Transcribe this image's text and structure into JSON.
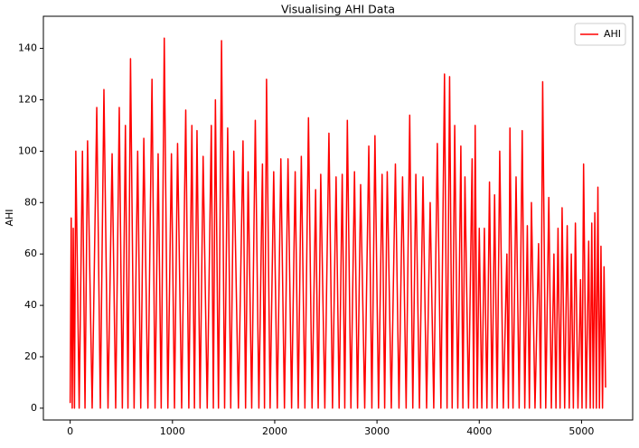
{
  "chart_data": {
    "type": "line",
    "title": "Visualising AHI Data",
    "y_label": "AHI",
    "xlim": [
      -262,
      5500
    ],
    "ylim": [
      -4.6,
      152.5
    ],
    "xticks": [
      0,
      1000,
      2000,
      3000,
      4000,
      5000
    ],
    "yticks": [
      0,
      20,
      40,
      60,
      80,
      100,
      120,
      140
    ],
    "grid": false,
    "legend": "upper right",
    "x": [
      0,
      10,
      20,
      30,
      42,
      55,
      88,
      120,
      145,
      170,
      215,
      260,
      295,
      330,
      370,
      410,
      445,
      480,
      510,
      540,
      565,
      590,
      625,
      660,
      690,
      720,
      760,
      800,
      830,
      860,
      890,
      920,
      955,
      990,
      1020,
      1050,
      1090,
      1130,
      1160,
      1190,
      1215,
      1240,
      1270,
      1300,
      1340,
      1380,
      1400,
      1420,
      1450,
      1480,
      1510,
      1540,
      1570,
      1600,
      1645,
      1690,
      1715,
      1740,
      1775,
      1810,
      1845,
      1880,
      1900,
      1920,
      1955,
      1990,
      2025,
      2060,
      2095,
      2130,
      2165,
      2200,
      2230,
      2260,
      2295,
      2330,
      2365,
      2400,
      2425,
      2450,
      2490,
      2530,
      2565,
      2600,
      2630,
      2660,
      2685,
      2710,
      2745,
      2780,
      2810,
      2840,
      2880,
      2920,
      2950,
      2980,
      3015,
      3050,
      3075,
      3100,
      3140,
      3180,
      3215,
      3250,
      3285,
      3320,
      3350,
      3380,
      3415,
      3450,
      3485,
      3520,
      3555,
      3590,
      3625,
      3660,
      3685,
      3710,
      3735,
      3760,
      3790,
      3820,
      3840,
      3860,
      3895,
      3930,
      3945,
      3960,
      3980,
      4000,
      4025,
      4050,
      4075,
      4100,
      4125,
      4150,
      4175,
      4200,
      4235,
      4270,
      4285,
      4300,
      4330,
      4360,
      4390,
      4420,
      4445,
      4470,
      4490,
      4510,
      4545,
      4580,
      4600,
      4620,
      4650,
      4680,
      4705,
      4730,
      4750,
      4770,
      4790,
      4810,
      4835,
      4860,
      4880,
      4900,
      4920,
      4940,
      4965,
      4990,
      5005,
      5020,
      5045,
      5070,
      5085,
      5100,
      5115,
      5130,
      5145,
      5160,
      5175,
      5190,
      5205,
      5220,
      5235
    ],
    "series": [
      {
        "name": "AHI",
        "color": "#ff0000",
        "values": [
          2,
          74,
          0,
          70,
          0,
          100,
          0,
          100,
          0,
          104,
          0,
          117,
          0,
          124,
          0,
          99,
          0,
          117,
          0,
          110,
          0,
          136,
          0,
          100,
          0,
          105,
          0,
          128,
          0,
          99,
          0,
          144,
          0,
          99,
          0,
          103,
          0,
          116,
          0,
          110,
          0,
          108,
          0,
          98,
          0,
          110,
          0,
          120,
          0,
          143,
          0,
          109,
          0,
          100,
          0,
          104,
          0,
          92,
          0,
          112,
          0,
          95,
          0,
          128,
          0,
          92,
          0,
          97,
          0,
          97,
          0,
          92,
          0,
          98,
          0,
          113,
          0,
          85,
          0,
          91,
          0,
          107,
          0,
          90,
          0,
          91,
          0,
          112,
          0,
          92,
          0,
          87,
          0,
          102,
          0,
          106,
          0,
          91,
          0,
          92,
          0,
          95,
          0,
          90,
          0,
          114,
          0,
          91,
          0,
          90,
          0,
          80,
          0,
          103,
          0,
          130,
          0,
          129,
          0,
          110,
          0,
          102,
          0,
          90,
          0,
          97,
          0,
          110,
          0,
          70,
          0,
          70,
          0,
          88,
          0,
          83,
          0,
          100,
          0,
          60,
          0,
          109,
          0,
          90,
          0,
          108,
          0,
          71,
          0,
          80,
          0,
          64,
          0,
          127,
          0,
          82,
          0,
          60,
          0,
          70,
          0,
          78,
          0,
          71,
          0,
          60,
          0,
          72,
          0,
          50,
          0,
          95,
          0,
          65,
          0,
          72,
          0,
          76,
          0,
          86,
          0,
          63,
          0,
          55,
          8
        ]
      }
    ]
  }
}
